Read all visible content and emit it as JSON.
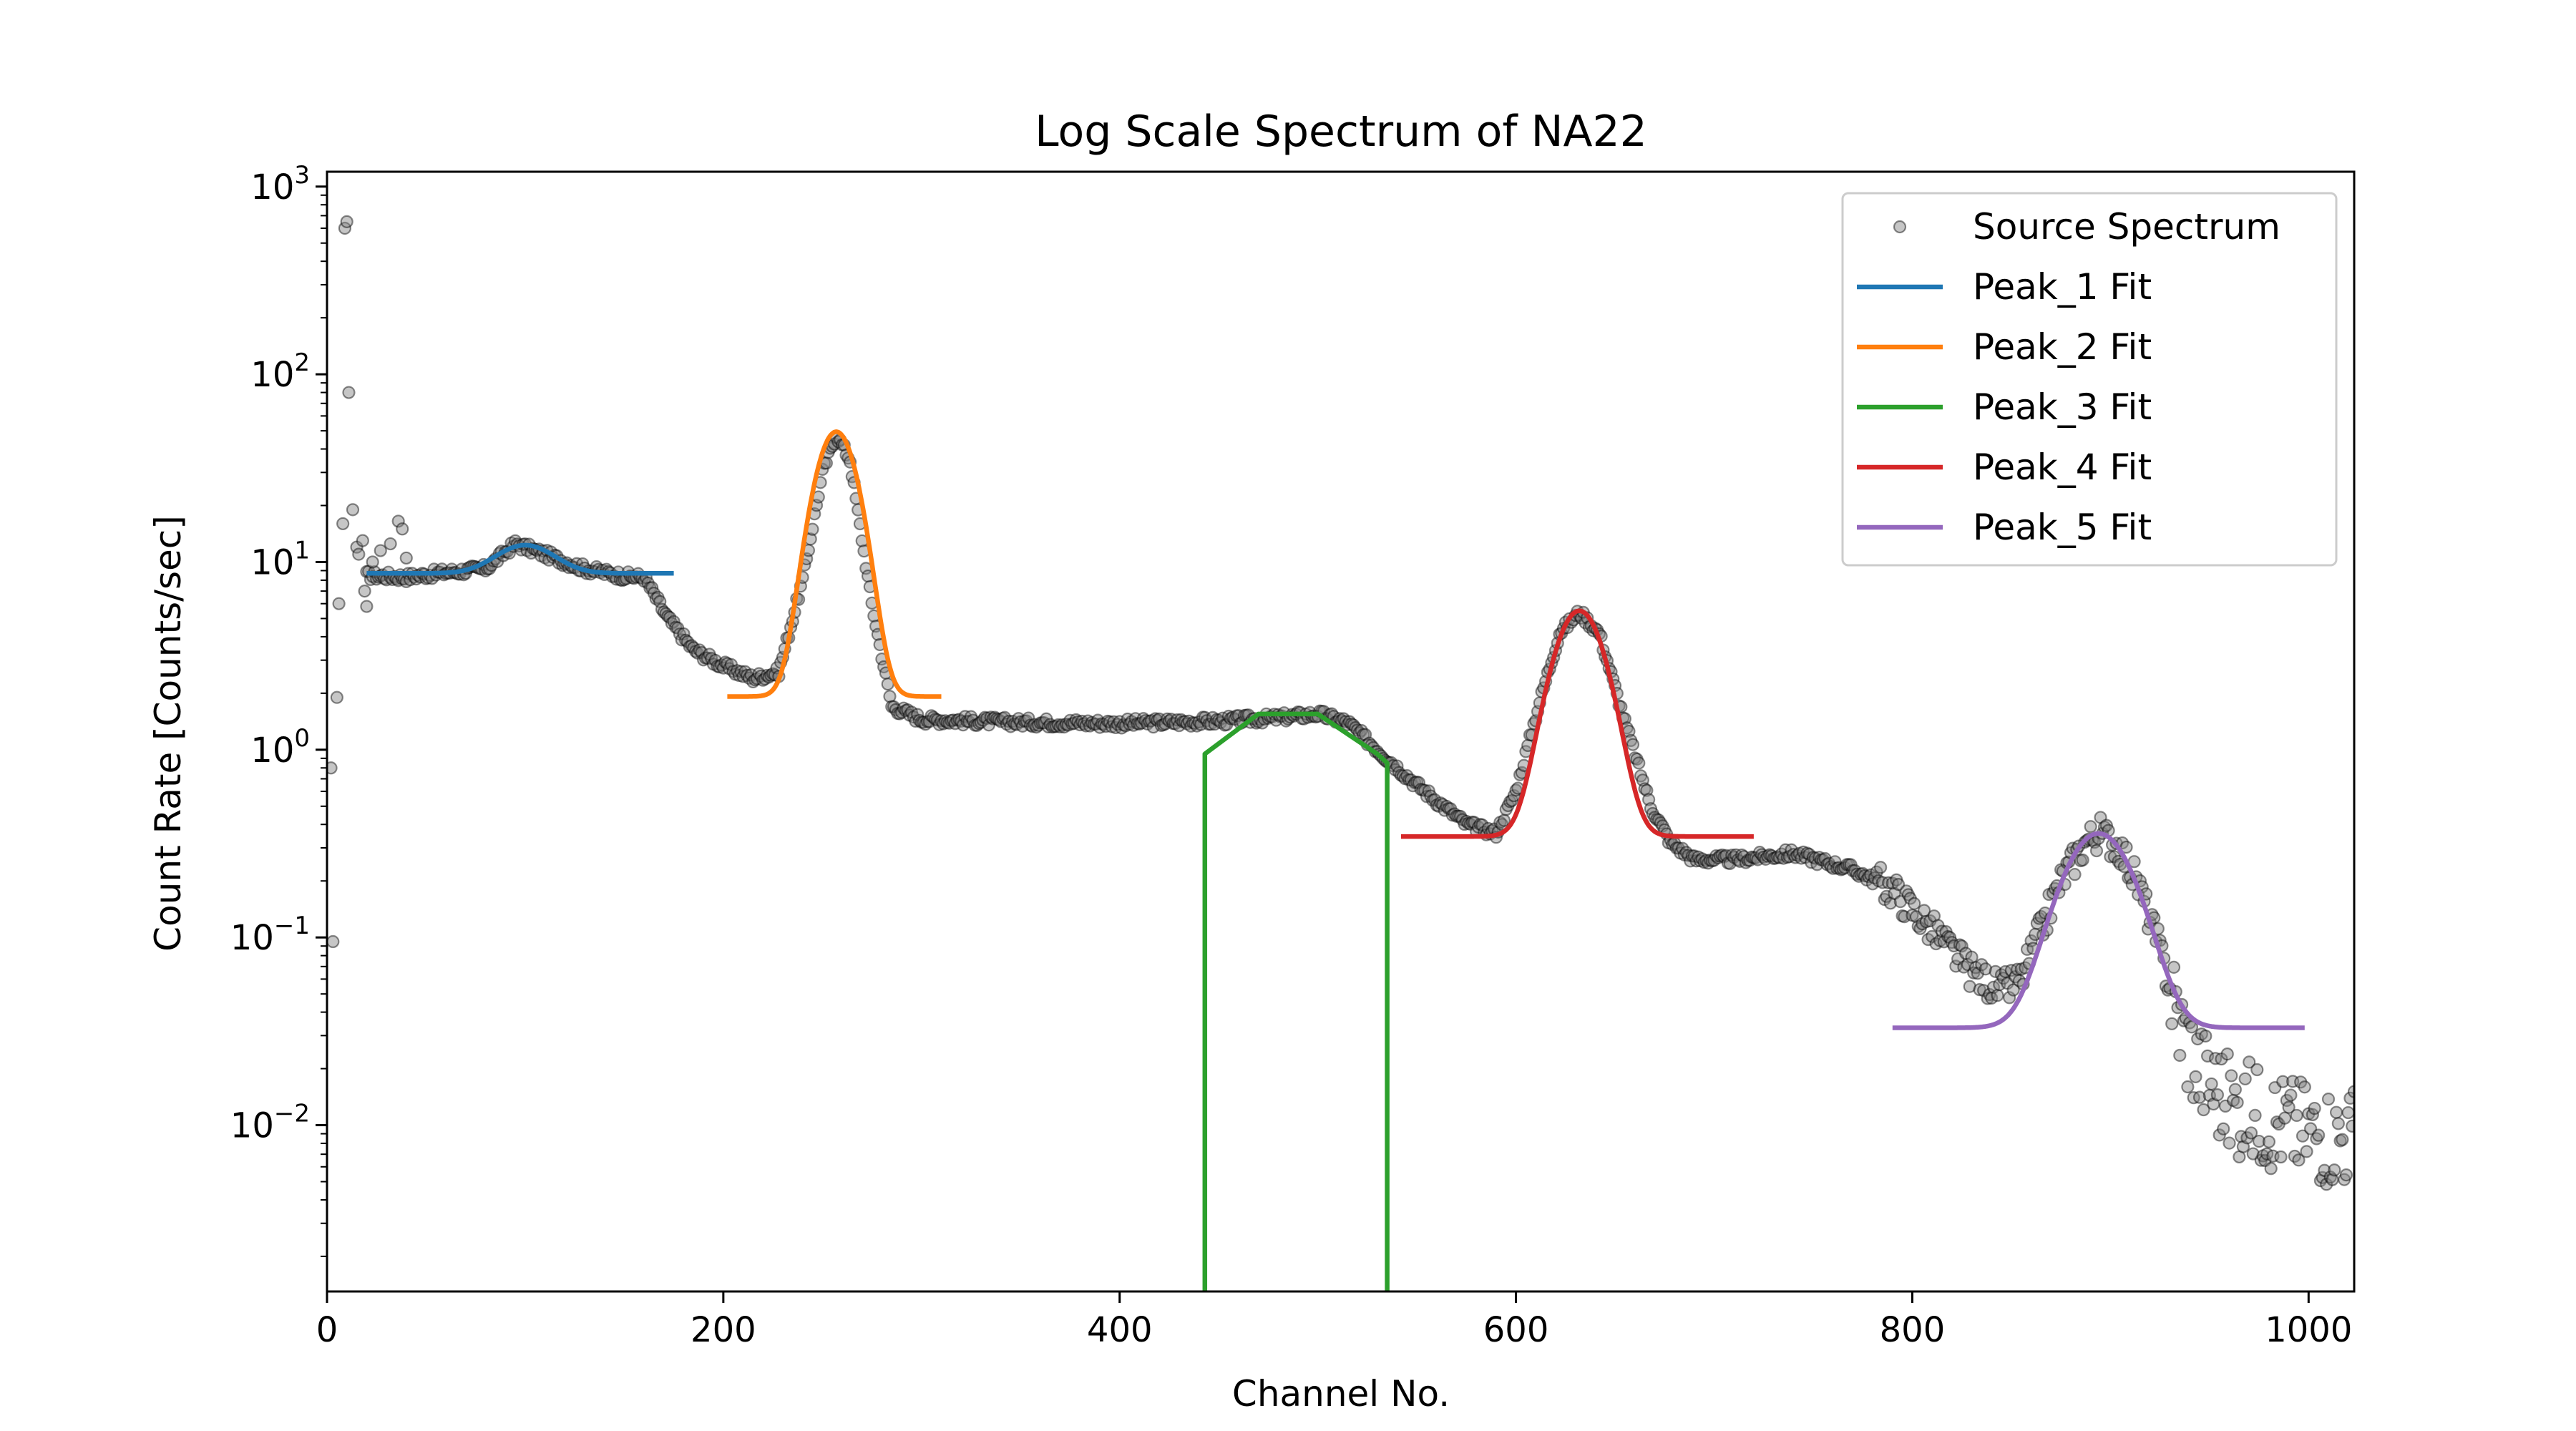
{
  "chart_data": {
    "type": "scatter",
    "title": "Log Scale Spectrum of NA22",
    "xlabel": "Channel No.",
    "ylabel": "Count Rate [Counts/sec]",
    "xlim": [
      0,
      1023
    ],
    "ylim": [
      0.0013,
      1200
    ],
    "yscale": "log",
    "grid": false,
    "legend_position": "top-right",
    "x_ticks": [
      0,
      200,
      400,
      600,
      800,
      1000
    ],
    "x_tick_labels": [
      "0",
      "200",
      "400",
      "600",
      "800",
      "1000"
    ],
    "y_ticks": [
      0.01,
      0.1,
      1,
      10,
      100,
      1000
    ],
    "y_tick_labels": [
      {
        "base": "10",
        "exp": "−2"
      },
      {
        "base": "10",
        "exp": "−1"
      },
      {
        "base": "10",
        "exp": "0"
      },
      {
        "base": "10",
        "exp": "1"
      },
      {
        "base": "10",
        "exp": "2"
      },
      {
        "base": "10",
        "exp": "3"
      }
    ],
    "spectrum": {
      "name": "Source Spectrum",
      "color": "#808080",
      "anchors": [
        [
          20,
          8.5
        ],
        [
          40,
          8.3
        ],
        [
          60,
          8.8
        ],
        [
          80,
          9.2
        ],
        [
          95,
          12.5
        ],
        [
          110,
          11.0
        ],
        [
          130,
          9.2
        ],
        [
          150,
          8.4
        ],
        [
          160,
          8.3
        ],
        [
          172,
          5.0
        ],
        [
          185,
          3.4
        ],
        [
          200,
          2.8
        ],
        [
          215,
          2.4
        ],
        [
          228,
          2.6
        ],
        [
          240,
          8.0
        ],
        [
          250,
          30.0
        ],
        [
          257,
          48.0
        ],
        [
          264,
          35.0
        ],
        [
          275,
          6.0
        ],
        [
          285,
          1.7
        ],
        [
          300,
          1.45
        ],
        [
          350,
          1.4
        ],
        [
          400,
          1.38
        ],
        [
          450,
          1.42
        ],
        [
          480,
          1.48
        ],
        [
          500,
          1.55
        ],
        [
          515,
          1.4
        ],
        [
          530,
          1.0
        ],
        [
          550,
          0.65
        ],
        [
          575,
          0.4
        ],
        [
          590,
          0.36
        ],
        [
          600,
          0.6
        ],
        [
          612,
          1.8
        ],
        [
          622,
          4.2
        ],
        [
          632,
          5.4
        ],
        [
          642,
          4.2
        ],
        [
          655,
          1.4
        ],
        [
          668,
          0.5
        ],
        [
          678,
          0.32
        ],
        [
          690,
          0.26
        ],
        [
          710,
          0.26
        ],
        [
          740,
          0.28
        ],
        [
          770,
          0.23
        ],
        [
          790,
          0.18
        ],
        [
          810,
          0.11
        ],
        [
          830,
          0.065
        ],
        [
          845,
          0.052
        ],
        [
          855,
          0.06
        ],
        [
          865,
          0.11
        ],
        [
          875,
          0.2
        ],
        [
          888,
          0.33
        ],
        [
          895,
          0.36
        ],
        [
          905,
          0.3
        ],
        [
          915,
          0.18
        ],
        [
          925,
          0.085
        ],
        [
          935,
          0.035
        ],
        [
          945,
          0.02
        ],
        [
          960,
          0.013
        ],
        [
          980,
          0.011
        ],
        [
          1000,
          0.0095
        ],
        [
          1023,
          0.0085
        ]
      ],
      "outliers": [
        [
          2,
          0.8
        ],
        [
          3,
          0.095
        ],
        [
          5,
          1.9
        ],
        [
          6,
          6.0
        ],
        [
          8,
          16.0
        ],
        [
          9,
          600.0
        ],
        [
          10,
          650.0
        ],
        [
          11,
          80.0
        ],
        [
          13,
          19.0
        ],
        [
          15,
          12.0
        ],
        [
          16,
          11.0
        ],
        [
          18,
          13.0
        ],
        [
          19,
          7.0
        ],
        [
          20,
          5.8
        ],
        [
          23,
          10.0
        ],
        [
          27,
          11.5
        ],
        [
          32,
          12.5
        ],
        [
          36,
          16.5
        ],
        [
          38,
          15.0
        ],
        [
          40,
          10.5
        ]
      ]
    },
    "fits": [
      {
        "name": "Peak_1 Fit",
        "color": "#1f77b4",
        "x_range": [
          20,
          175
        ],
        "baseline": 8.7,
        "amplitude": 3.6,
        "center": 100,
        "sigma": 14
      },
      {
        "name": "Peak_2 Fit",
        "color": "#ff7f0e",
        "x_range": [
          202,
          310
        ],
        "baseline": 1.92,
        "amplitude": 47.5,
        "center": 257,
        "sigma": 9.5
      },
      {
        "name": "Peak_3 Fit",
        "color": "#2ca02c",
        "points": [
          [
            443,
            0.0013
          ],
          [
            443,
            0.95
          ],
          [
            470,
            1.55
          ],
          [
            500,
            1.55
          ],
          [
            530,
            0.95
          ],
          [
            535,
            0.85
          ],
          [
            535,
            0.0013
          ]
        ]
      },
      {
        "name": "Peak_4 Fit",
        "color": "#d62728",
        "x_range": [
          542,
          720
        ],
        "baseline": 0.345,
        "amplitude": 5.15,
        "center": 632,
        "sigma": 11.5
      },
      {
        "name": "Peak_5 Fit",
        "color": "#9467bd",
        "x_range": [
          790,
          998
        ],
        "baseline": 0.033,
        "amplitude": 0.325,
        "center": 894,
        "sigma": 16
      }
    ]
  }
}
